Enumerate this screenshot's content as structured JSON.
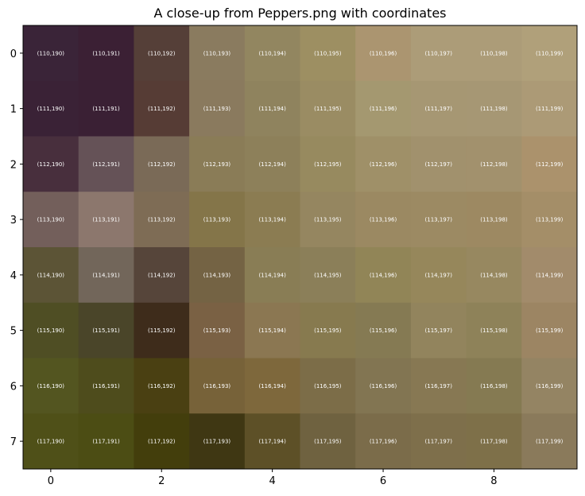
{
  "chart_data": {
    "type": "heatmap",
    "title": "A close-up from Peppers.png with coordinates",
    "xlabel": "",
    "ylabel": "",
    "x_ticks": [
      0,
      2,
      4,
      6,
      8
    ],
    "y_ticks": [
      0,
      1,
      2,
      3,
      4,
      5,
      6,
      7
    ],
    "xlim": [
      -0.5,
      9.5
    ],
    "ylim": [
      7.5,
      -0.5
    ],
    "grid": false,
    "row_coords": [
      110,
      111,
      112,
      113,
      114,
      115,
      116,
      117
    ],
    "col_coords": [
      190,
      191,
      192,
      193,
      194,
      195,
      196,
      197,
      198,
      199
    ],
    "label_color": "#ffffff",
    "pixel_colors": [
      [
        "#3a2438",
        "#3b2034",
        "#553f38",
        "#8a7b5f",
        "#928660",
        "#9d8f62",
        "#ab9570",
        "#ac9c78",
        "#ac9c78",
        "#b0a07a"
      ],
      [
        "#3a2236",
        "#3a2034",
        "#563c35",
        "#8a7a5e",
        "#8f835e",
        "#9a8c63",
        "#a49870",
        "#a69773",
        "#a69774",
        "#ac9a76"
      ],
      [
        "#482f3d",
        "#655257",
        "#7a6a57",
        "#8a7c57",
        "#8d805a",
        "#978a5f",
        "#9f9068",
        "#a1916d",
        "#a2916d",
        "#ab926c"
      ],
      [
        "#735f5b",
        "#8c776d",
        "#7e6c55",
        "#847549",
        "#8b7c52",
        "#958660",
        "#9b8962",
        "#9c8a63",
        "#9d8962",
        "#a48e68"
      ],
      [
        "#5c5436",
        "#72665a",
        "#56453a",
        "#746344",
        "#897d55",
        "#8b7f59",
        "#918557",
        "#96875b",
        "#978860",
        "#a28b6b"
      ],
      [
        "#4f4e24",
        "#4a4529",
        "#3e2c1b",
        "#7a6144",
        "#8b7752",
        "#877a4f",
        "#857a53",
        "#92845d",
        "#8e8259",
        "#9c8563"
      ],
      [
        "#535520",
        "#4e4c1c",
        "#4a4012",
        "#776239",
        "#7e683c",
        "#7c6d48",
        "#827552",
        "#877853",
        "#857a52",
        "#948463"
      ],
      [
        "#4f5018",
        "#4c4d14",
        "#433e0c",
        "#3f3713",
        "#5d5027",
        "#6f6240",
        "#7b6c4a",
        "#7e6f4b",
        "#7e7049",
        "#8a7a5b"
      ]
    ]
  }
}
